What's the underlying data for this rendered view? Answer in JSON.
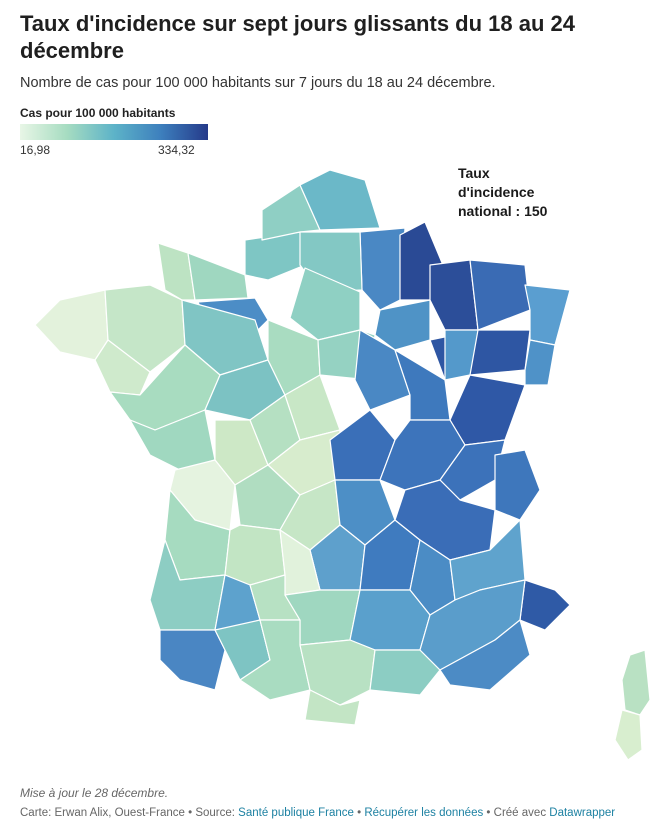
{
  "title": "Taux d'incidence sur sept jours glissants du 18 au 24 décembre",
  "subtitle": "Nombre de cas pour 100 000 habitants sur 7 jours du 18 au 24 décembre.",
  "legend": {
    "title": "Cas pour 100 000 habitants",
    "min": "16,98",
    "max": "334,32",
    "colors": [
      "#e8f6e6",
      "#a6dcc1",
      "#5db3c8",
      "#3d7fbd",
      "#253a8a"
    ]
  },
  "annotation": {
    "line1": "Taux",
    "line2": "d'incidence",
    "line3": "national : 150"
  },
  "updated": "Mise à jour le 28 décembre.",
  "footer": {
    "credit": "Carte: Erwan Alix, Ouest-France",
    "source_label": "Source:",
    "source": "Santé publique France",
    "download": "Récupérer les données",
    "made_with": "Créé avec",
    "tool": "Datawrapper"
  }
}
